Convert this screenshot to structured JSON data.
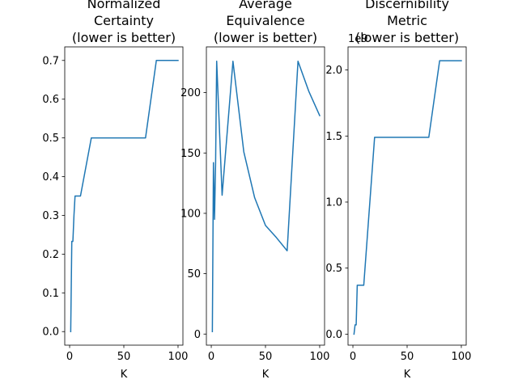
{
  "chart_data": [
    {
      "type": "line",
      "title": [
        "Normalized",
        "Certainty",
        "(lower is better)"
      ],
      "xlabel": "K",
      "ylabel": "",
      "color": "#1f77b4",
      "xlim": [
        -4.5,
        104.5
      ],
      "ylim": [
        -0.035,
        0.735
      ],
      "xticks": [
        0,
        50,
        100
      ],
      "xtick_labels": [
        "0",
        "50",
        "100"
      ],
      "yticks": [
        0.0,
        0.1,
        0.2,
        0.3,
        0.4,
        0.5,
        0.6,
        0.7
      ],
      "ytick_labels": [
        "0.0",
        "0.1",
        "0.2",
        "0.3",
        "0.4",
        "0.5",
        "0.6",
        "0.7"
      ],
      "offset_text": "",
      "series": [
        {
          "x": [
            1,
            2,
            3,
            4,
            5,
            10,
            20,
            30,
            40,
            50,
            60,
            70,
            80,
            90,
            100
          ],
          "values": [
            0.0,
            0.233,
            0.233,
            0.3,
            0.35,
            0.35,
            0.5,
            0.5,
            0.5,
            0.5,
            0.5,
            0.5,
            0.7,
            0.7,
            0.7
          ]
        }
      ]
    },
    {
      "type": "line",
      "title": [
        "Average",
        "Equivalence",
        "(lower is better)"
      ],
      "xlabel": "K",
      "ylabel": "",
      "color": "#1f77b4",
      "xlim": [
        -4.5,
        104.5
      ],
      "ylim": [
        -9.2,
        237.9
      ],
      "xticks": [
        0,
        50,
        100
      ],
      "xtick_labels": [
        "0",
        "50",
        "100"
      ],
      "yticks": [
        0,
        50,
        100,
        150,
        200
      ],
      "ytick_labels": [
        "0",
        "50",
        "100",
        "150",
        "200"
      ],
      "offset_text": "",
      "series": [
        {
          "x": [
            1,
            2,
            3,
            4,
            5,
            10,
            20,
            30,
            40,
            50,
            60,
            70,
            80,
            90,
            100
          ],
          "values": [
            2,
            142,
            95,
            142,
            226,
            115,
            226,
            151,
            113,
            90,
            80,
            69,
            226,
            201,
            181
          ]
        }
      ]
    },
    {
      "type": "line",
      "title": [
        "Discernibility",
        "Metric",
        "(lower is better)"
      ],
      "xlabel": "K",
      "ylabel": "",
      "color": "#1f77b4",
      "xlim": [
        -4.5,
        104.5
      ],
      "ylim": [
        -0.0835,
        2.175
      ],
      "xticks": [
        0,
        50,
        100
      ],
      "xtick_labels": [
        "0",
        "50",
        "100"
      ],
      "yticks": [
        0.0,
        0.5,
        1.0,
        1.5,
        2.0
      ],
      "ytick_labels": [
        "0.0",
        "0.5",
        "1.0",
        "1.5",
        "2.0"
      ],
      "offset_text": "1e9",
      "series": [
        {
          "x": [
            1,
            2,
            3,
            4,
            5,
            10,
            20,
            30,
            40,
            50,
            60,
            70,
            80,
            90,
            100
          ],
          "values": [
            0.0,
            0.07,
            0.07,
            0.37,
            0.37,
            0.37,
            1.49,
            1.49,
            1.49,
            1.49,
            1.49,
            1.49,
            2.07,
            2.07,
            2.07
          ]
        }
      ]
    }
  ]
}
